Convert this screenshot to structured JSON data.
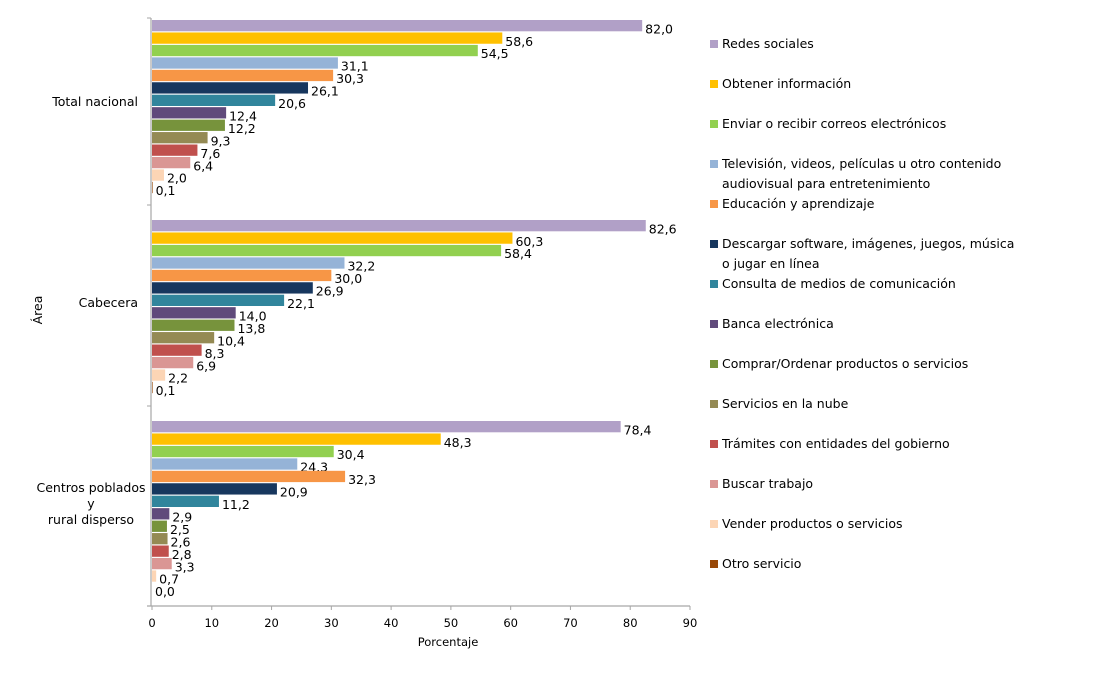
{
  "chart_data": {
    "type": "bar",
    "orientation": "horizontal",
    "title": "",
    "xlabel": "Porcentaje",
    "ylabel": "Área",
    "xlim": [
      0,
      90
    ],
    "xticks": [
      "0",
      "10",
      "20",
      "30",
      "40",
      "50",
      "60",
      "70",
      "80",
      "90"
    ],
    "grid": false,
    "legend_position": "right",
    "categories": [
      "Total nacional",
      "Cabecera",
      "Centros poblados y rural disperso"
    ],
    "category_labels": [
      [
        "Total nacional"
      ],
      [
        "Cabecera"
      ],
      [
        "Centros poblados",
        "y",
        "rural disperso"
      ]
    ],
    "series": [
      {
        "name": "Redes sociales",
        "color": "#b1a0c7",
        "values": [
          82.0,
          82.6,
          78.4
        ],
        "labels": [
          "82,0",
          "82,6",
          "78,4"
        ]
      },
      {
        "name": "Obtener información",
        "color": "#ffc000",
        "values": [
          58.6,
          60.3,
          48.3
        ],
        "labels": [
          "58,6",
          "60,3",
          "48,3"
        ]
      },
      {
        "name": "Enviar o recibir correos electrónicos",
        "color": "#92d050",
        "values": [
          54.5,
          58.4,
          30.4
        ],
        "labels": [
          "54,5",
          "58,4",
          "30,4"
        ]
      },
      {
        "name": "Televisión, videos, películas u otro contenido audiovisual para entretenimiento",
        "legend_lines": [
          "Televisión, videos, películas u otro contenido",
          "audiovisual para entretenimiento"
        ],
        "color": "#95b3d7",
        "values": [
          31.1,
          32.2,
          24.3
        ],
        "labels": [
          "31,1",
          "32,2",
          "24,3"
        ]
      },
      {
        "name": "Educación y aprendizaje",
        "color": "#f79646",
        "values": [
          30.3,
          30.0,
          32.3
        ],
        "labels": [
          "30,3",
          "30,0",
          "32,3"
        ]
      },
      {
        "name": "Descargar software, imágenes, juegos, música o jugar en línea",
        "legend_lines": [
          "Descargar software, imágenes, juegos, música",
          "o jugar en línea"
        ],
        "color": "#17375e",
        "values": [
          26.1,
          26.9,
          20.9
        ],
        "labels": [
          "26,1",
          "26,9",
          "20,9"
        ]
      },
      {
        "name": "Consulta de medios de comunicación",
        "color": "#31859c",
        "values": [
          20.6,
          22.1,
          11.2
        ],
        "labels": [
          "20,6",
          "22,1",
          "11,2"
        ]
      },
      {
        "name": "Banca electrónica",
        "color": "#604a7b",
        "values": [
          12.4,
          14.0,
          2.9
        ],
        "labels": [
          "12,4",
          "14,0",
          "2,9"
        ]
      },
      {
        "name": "Comprar/Ordenar productos o servicios",
        "color": "#77933c",
        "values": [
          12.2,
          13.8,
          2.5
        ],
        "labels": [
          "12,2",
          "13,8",
          "2,5"
        ]
      },
      {
        "name": "Servicios en la nube",
        "color": "#948a54",
        "values": [
          9.3,
          10.4,
          2.6
        ],
        "labels": [
          "9,3",
          "10,4",
          "2,6"
        ]
      },
      {
        "name": "Trámites con entidades del gobierno",
        "color": "#c0504d",
        "values": [
          7.6,
          8.3,
          2.8
        ],
        "labels": [
          "7,6",
          "8,3",
          "2,8"
        ]
      },
      {
        "name": "Buscar trabajo",
        "color": "#da9694",
        "values": [
          6.4,
          6.9,
          3.3
        ],
        "labels": [
          "6,4",
          "6,9",
          "3,3"
        ]
      },
      {
        "name": "Vender productos o servicios",
        "color": "#fcd5b5",
        "values": [
          2.0,
          2.2,
          0.7
        ],
        "labels": [
          "2,0",
          "2,2",
          "0,7"
        ]
      },
      {
        "name": "Otro servicio",
        "color": "#984807",
        "values": [
          0.1,
          0.1,
          0.0
        ],
        "labels": [
          "0,1",
          "0,1",
          "0,0"
        ]
      }
    ]
  }
}
